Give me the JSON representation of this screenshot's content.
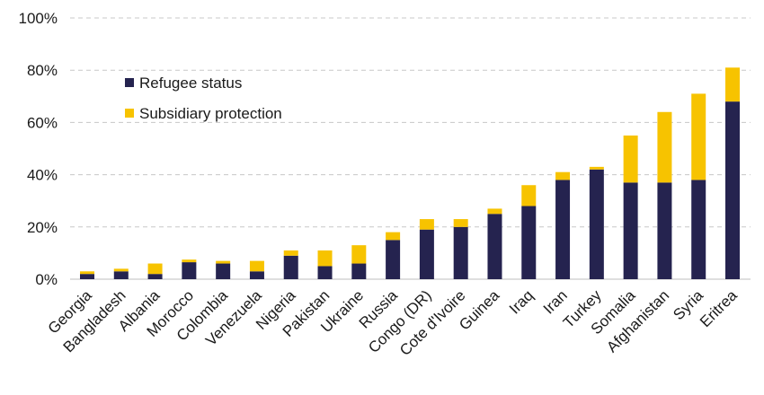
{
  "chart_data": {
    "type": "bar",
    "stacked": true,
    "title": "",
    "xlabel": "",
    "ylabel": "",
    "ylim": [
      0,
      100
    ],
    "yticks": [
      0,
      20,
      40,
      60,
      80,
      100
    ],
    "ytick_labels": [
      "0%",
      "20%",
      "40%",
      "60%",
      "80%",
      "100%"
    ],
    "grid": true,
    "legend_position": "top-left",
    "categories": [
      "Georgia",
      "Bangladesh",
      "Albania",
      "Morocco",
      "Colombia",
      "Venezuela",
      "Nigeria",
      "Pakistan",
      "Ukraine",
      "Russia",
      "Congo (DR)",
      "Cote d'Ivoire",
      "Guinea",
      "Iraq",
      "Iran",
      "Turkey",
      "Somalia",
      "Afghanistan",
      "Syria",
      "Eritrea"
    ],
    "series": [
      {
        "name": "Refugee status",
        "color": "#25234f",
        "values": [
          2,
          3,
          2,
          6.5,
          6,
          3,
          9,
          5,
          6,
          15,
          19,
          20,
          25,
          28,
          38,
          42,
          37,
          37,
          38,
          68
        ]
      },
      {
        "name": "Subsidiary protection",
        "color": "#f7c300",
        "values": [
          1,
          1,
          4,
          1,
          1,
          4,
          2,
          6,
          7,
          3,
          4,
          3,
          2,
          8,
          3,
          1,
          18,
          27,
          33,
          13
        ]
      }
    ]
  }
}
